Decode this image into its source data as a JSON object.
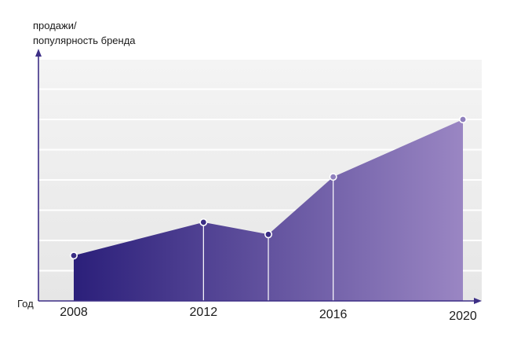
{
  "chart_data": {
    "type": "area",
    "title": "",
    "ylabel_lines": [
      "продажи/",
      "популярность бренда"
    ],
    "xlabel": "Год",
    "x": [
      2008,
      2012,
      2014,
      2016,
      2020
    ],
    "values": [
      1.5,
      2.6,
      2.2,
      4.1,
      6.0
    ],
    "x_tick_labels": [
      "2008",
      "2012",
      "2016",
      "2020"
    ],
    "x_ticks": [
      2008,
      2012,
      2016,
      2020
    ],
    "xlim": [
      2008,
      2020
    ],
    "ylim": [
      0,
      8
    ],
    "grid": true,
    "legend": "none",
    "colors": {
      "fill_start": "#2b1f7a",
      "fill_end": "#9a86c3",
      "axis": "#3d2f86",
      "marker": "#8f80bd",
      "marker_start": "#3a2d84",
      "plot_bg_top": "#f4f4f4",
      "plot_bg_bottom": "#e6e6e6",
      "grid": "#ffffff"
    }
  }
}
